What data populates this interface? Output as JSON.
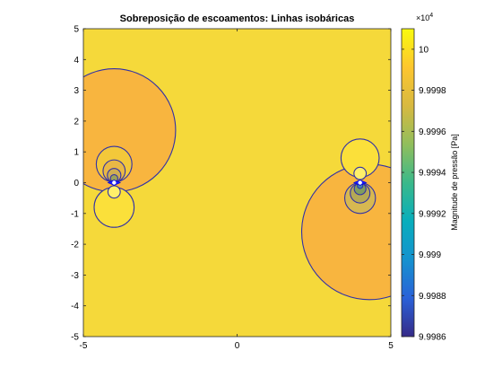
{
  "chart_data": {
    "type": "contour",
    "title": "Sobreposição de escoamentos: Linhas isobáricas",
    "xlabel": "",
    "ylabel": "",
    "xlim": [
      -5,
      5
    ],
    "ylim": [
      -5,
      5
    ],
    "x_ticks": [
      -5,
      0,
      5
    ],
    "y_ticks": [
      5,
      4,
      3,
      2,
      1,
      0,
      -1,
      -2,
      -3,
      -4,
      -5
    ],
    "grid": false,
    "background_level_color": "#f5d93a",
    "contours": [
      {
        "name": "upper-left-low-lobe",
        "cx": -4.0,
        "cy": 1.7,
        "r": 2.0,
        "fill": "#f8b53f"
      },
      {
        "name": "lower-right-low-lobe",
        "cx": 4.3,
        "cy": -1.6,
        "r": 2.2,
        "fill": "#f8b53f"
      },
      {
        "name": "left-above-1",
        "cx": -4.0,
        "cy": 0.6,
        "r": 0.58,
        "fill": "#f3c83a"
      },
      {
        "name": "left-above-2",
        "cx": -4.0,
        "cy": 0.38,
        "r": 0.36,
        "fill": "#e9b845"
      },
      {
        "name": "left-above-3",
        "cx": -4.0,
        "cy": 0.24,
        "r": 0.22,
        "fill": "#cfae52"
      },
      {
        "name": "left-above-4",
        "cx": -4.0,
        "cy": 0.14,
        "r": 0.12,
        "fill": "#9aa25a"
      },
      {
        "name": "left-below-1",
        "cx": -4.0,
        "cy": -0.8,
        "r": 0.65,
        "fill": "#fbe03a"
      },
      {
        "name": "left-below-2",
        "cx": -4.0,
        "cy": -0.3,
        "r": 0.2,
        "fill": "#fff06a"
      },
      {
        "name": "right-above-1",
        "cx": 4.0,
        "cy": 0.8,
        "r": 0.62,
        "fill": "#fbe03a"
      },
      {
        "name": "right-above-2",
        "cx": 4.0,
        "cy": 0.3,
        "r": 0.2,
        "fill": "#fff06a"
      },
      {
        "name": "right-below-1",
        "cx": 4.0,
        "cy": -0.5,
        "r": 0.5,
        "fill": "#d7b851"
      },
      {
        "name": "right-below-2",
        "cx": 4.0,
        "cy": -0.34,
        "r": 0.32,
        "fill": "#b5a955"
      },
      {
        "name": "right-below-3",
        "cx": 4.0,
        "cy": -0.2,
        "r": 0.19,
        "fill": "#7f9d60"
      },
      {
        "name": "right-below-4",
        "cx": 4.0,
        "cy": -0.1,
        "r": 0.09,
        "fill": "#3f82b6"
      }
    ],
    "contour_line_color": "#3030a8",
    "sources": [
      {
        "name": "left-singularity",
        "x": -4.0,
        "y": 0.0
      },
      {
        "name": "right-singularity",
        "x": 4.0,
        "y": 0.0
      }
    ],
    "colorbar": {
      "label": "Magnitude de pressão [Pa]",
      "exponent_label": "×10",
      "exponent_power": "4",
      "ticks": [
        "10",
        "9.9998",
        "9.9996",
        "9.9994",
        "9.9992",
        "9.999",
        "9.9988",
        "9.9986"
      ],
      "tick_values": [
        10.0,
        9.9998,
        9.9996,
        9.9994,
        9.9992,
        9.999,
        9.9988,
        9.9986
      ],
      "range": [
        9.9986,
        10.0001
      ],
      "colormap": "parula",
      "colormap_stops": [
        "#352a87",
        "#2a61d8",
        "#1592cf",
        "#08aebc",
        "#3ab98a",
        "#91be5c",
        "#d8b940",
        "#fdc62f",
        "#f9fb0e"
      ]
    }
  }
}
